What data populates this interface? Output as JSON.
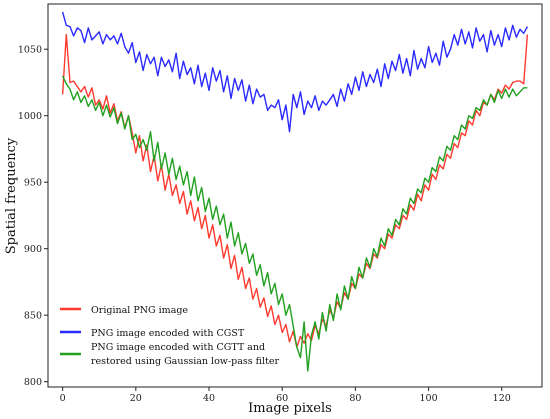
{
  "chart_data": {
    "type": "line",
    "title": "",
    "xlabel": "Image pixels",
    "ylabel": "Spatial frequency",
    "xlim": [
      -4,
      131
    ],
    "ylim": [
      796,
      1084
    ],
    "xticks": [
      0,
      20,
      40,
      60,
      80,
      100,
      120
    ],
    "yticks": [
      800,
      850,
      900,
      950,
      1000,
      1050
    ],
    "grid": false,
    "legend_position": "lower-left",
    "series": [
      {
        "name": "Original PNG image",
        "color": "#ff3b30",
        "x": [
          0,
          1,
          2,
          3,
          4,
          5,
          6,
          7,
          8,
          9,
          10,
          11,
          12,
          13,
          14,
          15,
          16,
          17,
          18,
          19,
          20,
          21,
          22,
          23,
          24,
          25,
          26,
          27,
          28,
          29,
          30,
          31,
          32,
          33,
          34,
          35,
          36,
          37,
          38,
          39,
          40,
          41,
          42,
          43,
          44,
          45,
          46,
          47,
          48,
          49,
          50,
          51,
          52,
          53,
          54,
          55,
          56,
          57,
          58,
          59,
          60,
          61,
          62,
          63,
          64,
          65,
          66,
          67,
          68,
          69,
          70,
          71,
          72,
          73,
          74,
          75,
          76,
          77,
          78,
          79,
          80,
          81,
          82,
          83,
          84,
          85,
          86,
          87,
          88,
          89,
          90,
          91,
          92,
          93,
          94,
          95,
          96,
          97,
          98,
          99,
          100,
          101,
          102,
          103,
          104,
          105,
          106,
          107,
          108,
          109,
          110,
          111,
          112,
          113,
          114,
          115,
          116,
          117,
          118,
          119,
          120,
          121,
          122,
          123,
          124,
          125,
          126,
          127
        ],
        "y": [
          1016,
          1061,
          1025,
          1026,
          1022,
          1018,
          1022,
          1014,
          1021,
          1008,
          1012,
          1005,
          1015,
          1002,
          1009,
          996,
          1003,
          991,
          1000,
          987,
          972,
          985,
          966,
          978,
          958,
          970,
          951,
          963,
          944,
          956,
          940,
          948,
          934,
          943,
          926,
          936,
          921,
          931,
          915,
          925,
          908,
          918,
          902,
          910,
          893,
          903,
          885,
          895,
          877,
          886,
          870,
          878,
          862,
          870,
          856,
          863,
          849,
          857,
          843,
          850,
          837,
          843,
          830,
          838,
          826,
          834,
          829,
          836,
          831,
          842,
          836,
          847,
          842,
          854,
          848,
          860,
          855,
          867,
          862,
          874,
          870,
          881,
          878,
          889,
          885,
          896,
          893,
          903,
          900,
          911,
          908,
          918,
          915,
          925,
          922,
          933,
          929,
          941,
          936,
          948,
          944,
          956,
          952,
          963,
          960,
          971,
          968,
          979,
          976,
          987,
          985,
          996,
          993,
          1004,
          1000,
          1010,
          1008,
          1016,
          1012,
          1020,
          1017,
          1023,
          1020,
          1025,
          1026,
          1026,
          1024,
          1061
        ]
      },
      {
        "name": "PNG image encoded with CGST",
        "color": "#2a2aff",
        "x": [
          0,
          1,
          2,
          3,
          4,
          5,
          6,
          7,
          8,
          9,
          10,
          11,
          12,
          13,
          14,
          15,
          16,
          17,
          18,
          19,
          20,
          21,
          22,
          23,
          24,
          25,
          26,
          27,
          28,
          29,
          30,
          31,
          32,
          33,
          34,
          35,
          36,
          37,
          38,
          39,
          40,
          41,
          42,
          43,
          44,
          45,
          46,
          47,
          48,
          49,
          50,
          51,
          52,
          53,
          54,
          55,
          56,
          57,
          58,
          59,
          60,
          61,
          62,
          63,
          64,
          65,
          66,
          67,
          68,
          69,
          70,
          71,
          72,
          73,
          74,
          75,
          76,
          77,
          78,
          79,
          80,
          81,
          82,
          83,
          84,
          85,
          86,
          87,
          88,
          89,
          90,
          91,
          92,
          93,
          94,
          95,
          96,
          97,
          98,
          99,
          100,
          101,
          102,
          103,
          104,
          105,
          106,
          107,
          108,
          109,
          110,
          111,
          112,
          113,
          114,
          115,
          116,
          117,
          118,
          119,
          120,
          121,
          122,
          123,
          124,
          125,
          126,
          127
        ],
        "y": [
          1078,
          1068,
          1067,
          1060,
          1066,
          1064,
          1055,
          1066,
          1057,
          1060,
          1063,
          1054,
          1061,
          1057,
          1060,
          1054,
          1062,
          1052,
          1047,
          1055,
          1040,
          1048,
          1034,
          1046,
          1039,
          1044,
          1030,
          1044,
          1037,
          1042,
          1033,
          1047,
          1028,
          1041,
          1031,
          1036,
          1024,
          1038,
          1022,
          1032,
          1019,
          1036,
          1026,
          1034,
          1018,
          1030,
          1013,
          1028,
          1019,
          1027,
          1011,
          1023,
          1009,
          1020,
          1014,
          1016,
          1004,
          1008,
          1006,
          1012,
          997,
          1008,
          988,
          1016,
          1006,
          1018,
          1001,
          1011,
          1006,
          1015,
          1004,
          1011,
          1008,
          1012,
          1016,
          1007,
          1020,
          1011,
          1024,
          1016,
          1029,
          1019,
          1033,
          1022,
          1031,
          1025,
          1035,
          1022,
          1039,
          1028,
          1041,
          1034,
          1046,
          1032,
          1043,
          1030,
          1049,
          1035,
          1043,
          1036,
          1052,
          1040,
          1047,
          1038,
          1056,
          1044,
          1050,
          1061,
          1053,
          1065,
          1054,
          1063,
          1051,
          1066,
          1056,
          1061,
          1048,
          1064,
          1053,
          1061,
          1052,
          1066,
          1057,
          1068,
          1059,
          1065,
          1062,
          1067
        ]
      },
      {
        "name": "PNG image encoded with CGTT and restored using Gaussian low-pass filter",
        "label_lines": [
          "PNG image encoded with CGTT and",
          "restored using Gaussian low-pass filter"
        ],
        "color": "#22a020",
        "x": [
          0,
          1,
          2,
          3,
          4,
          5,
          6,
          7,
          8,
          9,
          10,
          11,
          12,
          13,
          14,
          15,
          16,
          17,
          18,
          19,
          20,
          21,
          22,
          23,
          24,
          25,
          26,
          27,
          28,
          29,
          30,
          31,
          32,
          33,
          34,
          35,
          36,
          37,
          38,
          39,
          40,
          41,
          42,
          43,
          44,
          45,
          46,
          47,
          48,
          49,
          50,
          51,
          52,
          53,
          54,
          55,
          56,
          57,
          58,
          59,
          60,
          61,
          62,
          63,
          64,
          65,
          66,
          67,
          68,
          69,
          70,
          71,
          72,
          73,
          74,
          75,
          76,
          77,
          78,
          79,
          80,
          81,
          82,
          83,
          84,
          85,
          86,
          87,
          88,
          89,
          90,
          91,
          92,
          93,
          94,
          95,
          96,
          97,
          98,
          99,
          100,
          101,
          102,
          103,
          104,
          105,
          106,
          107,
          108,
          109,
          110,
          111,
          112,
          113,
          114,
          115,
          116,
          117,
          118,
          119,
          120,
          121,
          122,
          123,
          124,
          125,
          126,
          127
        ],
        "y": [
          1030,
          1024,
          1020,
          1012,
          1018,
          1010,
          1015,
          1007,
          1012,
          1004,
          1010,
          1000,
          1008,
          999,
          1006,
          994,
          1002,
          990,
          1000,
          982,
          986,
          976,
          982,
          974,
          988,
          966,
          980,
          960,
          972,
          956,
          968,
          952,
          962,
          948,
          958,
          940,
          954,
          936,
          946,
          928,
          938,
          922,
          932,
          918,
          926,
          908,
          920,
          902,
          912,
          896,
          904,
          889,
          896,
          880,
          888,
          872,
          882,
          866,
          874,
          858,
          866,
          850,
          858,
          842,
          826,
          818,
          845,
          808,
          835,
          845,
          832,
          852,
          838,
          858,
          846,
          866,
          854,
          872,
          862,
          879,
          870,
          886,
          878,
          893,
          886,
          900,
          894,
          908,
          902,
          915,
          910,
          922,
          918,
          930,
          926,
          938,
          934,
          945,
          942,
          953,
          950,
          961,
          958,
          969,
          966,
          977,
          974,
          985,
          982,
          993,
          990,
          1000,
          998,
          1006,
          1004,
          1012,
          1008,
          1016,
          1010,
          1019,
          1013,
          1020,
          1014,
          1020,
          1015,
          1018,
          1021,
          1021
        ]
      }
    ]
  }
}
